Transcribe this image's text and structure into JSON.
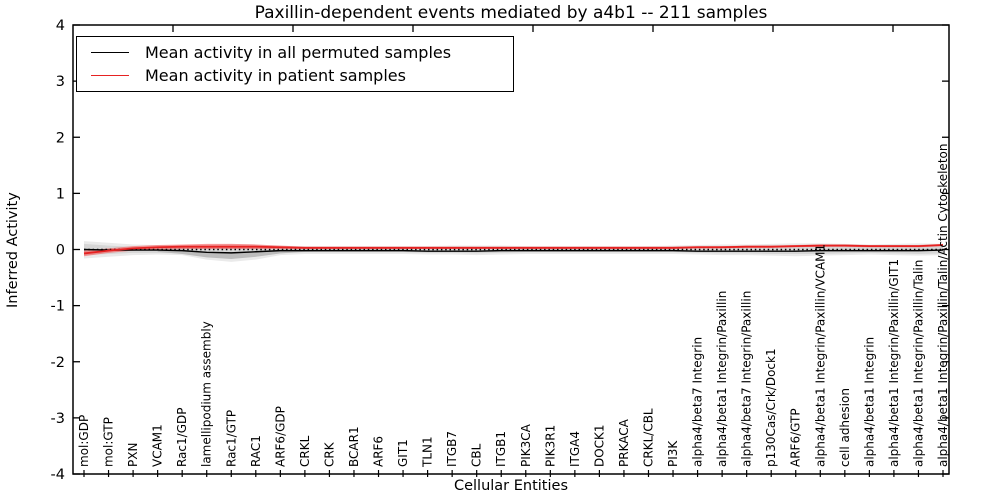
{
  "title": "Paxillin-dependent events mediated by a4b1 -- 211 samples",
  "axes": {
    "ylabel": "Inferred Activity",
    "xlabel": "Cellular Entities",
    "ytick_labels": [
      "4",
      "3",
      "2",
      "1",
      "0",
      "-1",
      "-2",
      "-3",
      "-4"
    ],
    "ytick_values": [
      4,
      3,
      2,
      1,
      0,
      -1,
      -2,
      -3,
      -4
    ]
  },
  "legend": {
    "items": [
      {
        "label": "Mean activity in all permuted samples",
        "color": "#000000"
      },
      {
        "label": "Mean activity in patient samples",
        "color": "#e62222"
      }
    ]
  },
  "chart_data": {
    "type": "line",
    "title": "Paxillin-dependent events mediated by a4b1 -- 211 samples",
    "xlabel": "Cellular Entities",
    "ylabel": "Inferred Activity",
    "ylim": [
      -4,
      4
    ],
    "grid": false,
    "legend_position": "upper left",
    "categories": [
      "mol:GDP",
      "mol:GTP",
      "PXN",
      "VCAM1",
      "Rac1/GDP",
      "lamellipodium assembly",
      "Rac1/GTP",
      "RAC1",
      "ARF6/GDP",
      "CRKL",
      "CRK",
      "BCAR1",
      "ARF6",
      "GIT1",
      "TLN1",
      "ITGB7",
      "CBL",
      "ITGB1",
      "PIK3CA",
      "PIK3R1",
      "ITGA4",
      "DOCK1",
      "PRKACA",
      "CRKL/CBL",
      "PI3K",
      "alpha4/beta7 Integrin",
      "alpha4/beta1 Integrin/Paxillin",
      "alpha4/beta7 Integrin/Paxillin",
      "p130Cas/Crk/Dock1",
      "ARF6/GTP",
      "alpha4/beta1 Integrin/Paxillin/VCAM1",
      "cell adhesion",
      "alpha4/beta1 Integrin",
      "alpha4/beta1 Integrin/Paxillin/GIT1",
      "alpha4/beta1 Integrin/Paxillin/Talin",
      "alpha4/beta1 Integrin/Paxillin/Talin/Actin Cytoskeleton"
    ],
    "series": [
      {
        "name": "zero-reference-line",
        "color": "#000000",
        "style": "dotted",
        "width": 1.4,
        "values": [
          0,
          0,
          0,
          0,
          0,
          0,
          0,
          0,
          0,
          0,
          0,
          0,
          0,
          0,
          0,
          0,
          0,
          0,
          0,
          0,
          0,
          0,
          0,
          0,
          0,
          0,
          0,
          0,
          0,
          0,
          0,
          0,
          0,
          0,
          0,
          0
        ]
      },
      {
        "name": "Mean activity in all permuted samples",
        "color": "#000000",
        "style": "solid",
        "width": 1.4,
        "values": [
          0.0,
          -0.01,
          -0.01,
          -0.01,
          -0.02,
          -0.05,
          -0.06,
          -0.04,
          -0.02,
          -0.02,
          -0.02,
          -0.02,
          -0.02,
          -0.02,
          -0.03,
          -0.03,
          -0.03,
          -0.02,
          -0.02,
          -0.02,
          -0.02,
          -0.02,
          -0.02,
          -0.02,
          -0.02,
          -0.03,
          -0.03,
          -0.03,
          -0.03,
          -0.03,
          -0.02,
          -0.02,
          -0.02,
          -0.02,
          -0.02,
          -0.01
        ]
      },
      {
        "name": "Mean activity in patient samples",
        "color": "#e62222",
        "style": "solid",
        "width": 1.8,
        "values": [
          -0.07,
          -0.02,
          0.02,
          0.04,
          0.05,
          0.05,
          0.05,
          0.05,
          0.04,
          0.03,
          0.03,
          0.03,
          0.03,
          0.03,
          0.03,
          0.03,
          0.03,
          0.03,
          0.03,
          0.03,
          0.03,
          0.03,
          0.03,
          0.03,
          0.03,
          0.04,
          0.04,
          0.05,
          0.05,
          0.06,
          0.07,
          0.07,
          0.06,
          0.06,
          0.06,
          0.08
        ]
      }
    ],
    "bands": [
      {
        "name": "permuted-range-outer",
        "color": "#eaeaea",
        "upper": [
          0.15,
          0.12,
          0.09,
          0.08,
          0.08,
          0.09,
          0.1,
          0.09,
          0.07,
          0.06,
          0.06,
          0.06,
          0.06,
          0.06,
          0.06,
          0.07,
          0.07,
          0.07,
          0.06,
          0.06,
          0.06,
          0.06,
          0.06,
          0.06,
          0.07,
          0.08,
          0.09,
          0.09,
          0.1,
          0.11,
          0.11,
          0.1,
          0.09,
          0.1,
          0.11,
          0.1
        ],
        "lower": [
          -0.16,
          -0.13,
          -0.1,
          -0.09,
          -0.1,
          -0.18,
          -0.22,
          -0.18,
          -0.1,
          -0.08,
          -0.08,
          -0.08,
          -0.08,
          -0.08,
          -0.09,
          -0.09,
          -0.1,
          -0.09,
          -0.08,
          -0.08,
          -0.08,
          -0.08,
          -0.08,
          -0.08,
          -0.08,
          -0.09,
          -0.1,
          -0.1,
          -0.11,
          -0.12,
          -0.11,
          -0.1,
          -0.09,
          -0.1,
          -0.11,
          -0.1
        ]
      },
      {
        "name": "permuted-sd-inner",
        "color": "#d6d6d6",
        "upper": [
          0.1,
          0.07,
          0.05,
          0.05,
          0.05,
          0.06,
          0.06,
          0.06,
          0.05,
          0.04,
          0.04,
          0.04,
          0.04,
          0.04,
          0.04,
          0.05,
          0.05,
          0.05,
          0.04,
          0.04,
          0.04,
          0.04,
          0.04,
          0.04,
          0.05,
          0.05,
          0.06,
          0.06,
          0.07,
          0.07,
          0.07,
          0.07,
          0.06,
          0.07,
          0.07,
          0.07
        ],
        "lower": [
          -0.1,
          -0.08,
          -0.06,
          -0.06,
          -0.07,
          -0.13,
          -0.16,
          -0.13,
          -0.07,
          -0.05,
          -0.05,
          -0.05,
          -0.05,
          -0.05,
          -0.06,
          -0.06,
          -0.07,
          -0.06,
          -0.05,
          -0.05,
          -0.05,
          -0.05,
          -0.05,
          -0.05,
          -0.05,
          -0.06,
          -0.07,
          -0.07,
          -0.08,
          -0.08,
          -0.08,
          -0.07,
          -0.06,
          -0.07,
          -0.08,
          -0.07
        ]
      },
      {
        "name": "permuted-dense-dip",
        "color": "#bcbcbc",
        "start": 3,
        "upper": [
          -0.02,
          -0.03,
          -0.05,
          -0.06,
          -0.04,
          -0.03,
          -0.02,
          -0.02
        ],
        "lower": [
          -0.04,
          -0.08,
          -0.14,
          -0.17,
          -0.13,
          -0.07,
          -0.04,
          -0.03
        ]
      },
      {
        "name": "patient-sd-band",
        "color": "rgba(255,45,45,0.45)",
        "upper": [
          -0.02,
          0.02,
          0.06,
          0.08,
          0.09,
          0.1,
          0.1,
          0.09,
          0.07,
          0.05,
          0.05,
          0.05,
          0.05,
          0.05,
          0.05,
          0.05,
          0.05,
          0.05,
          0.05,
          0.05,
          0.05,
          0.05,
          0.05,
          0.05,
          0.05,
          0.06,
          0.06,
          0.07,
          0.07,
          0.08,
          0.09,
          0.09,
          0.08,
          0.08,
          0.08,
          0.1
        ],
        "lower": [
          -0.12,
          -0.06,
          -0.02,
          0.0,
          0.01,
          0.01,
          0.01,
          0.01,
          0.01,
          0.01,
          0.01,
          0.01,
          0.01,
          0.01,
          0.01,
          0.01,
          0.01,
          0.01,
          0.01,
          0.01,
          0.01,
          0.01,
          0.01,
          0.01,
          0.01,
          0.02,
          0.02,
          0.03,
          0.03,
          0.04,
          0.05,
          0.05,
          0.04,
          0.04,
          0.04,
          0.06
        ]
      }
    ]
  }
}
